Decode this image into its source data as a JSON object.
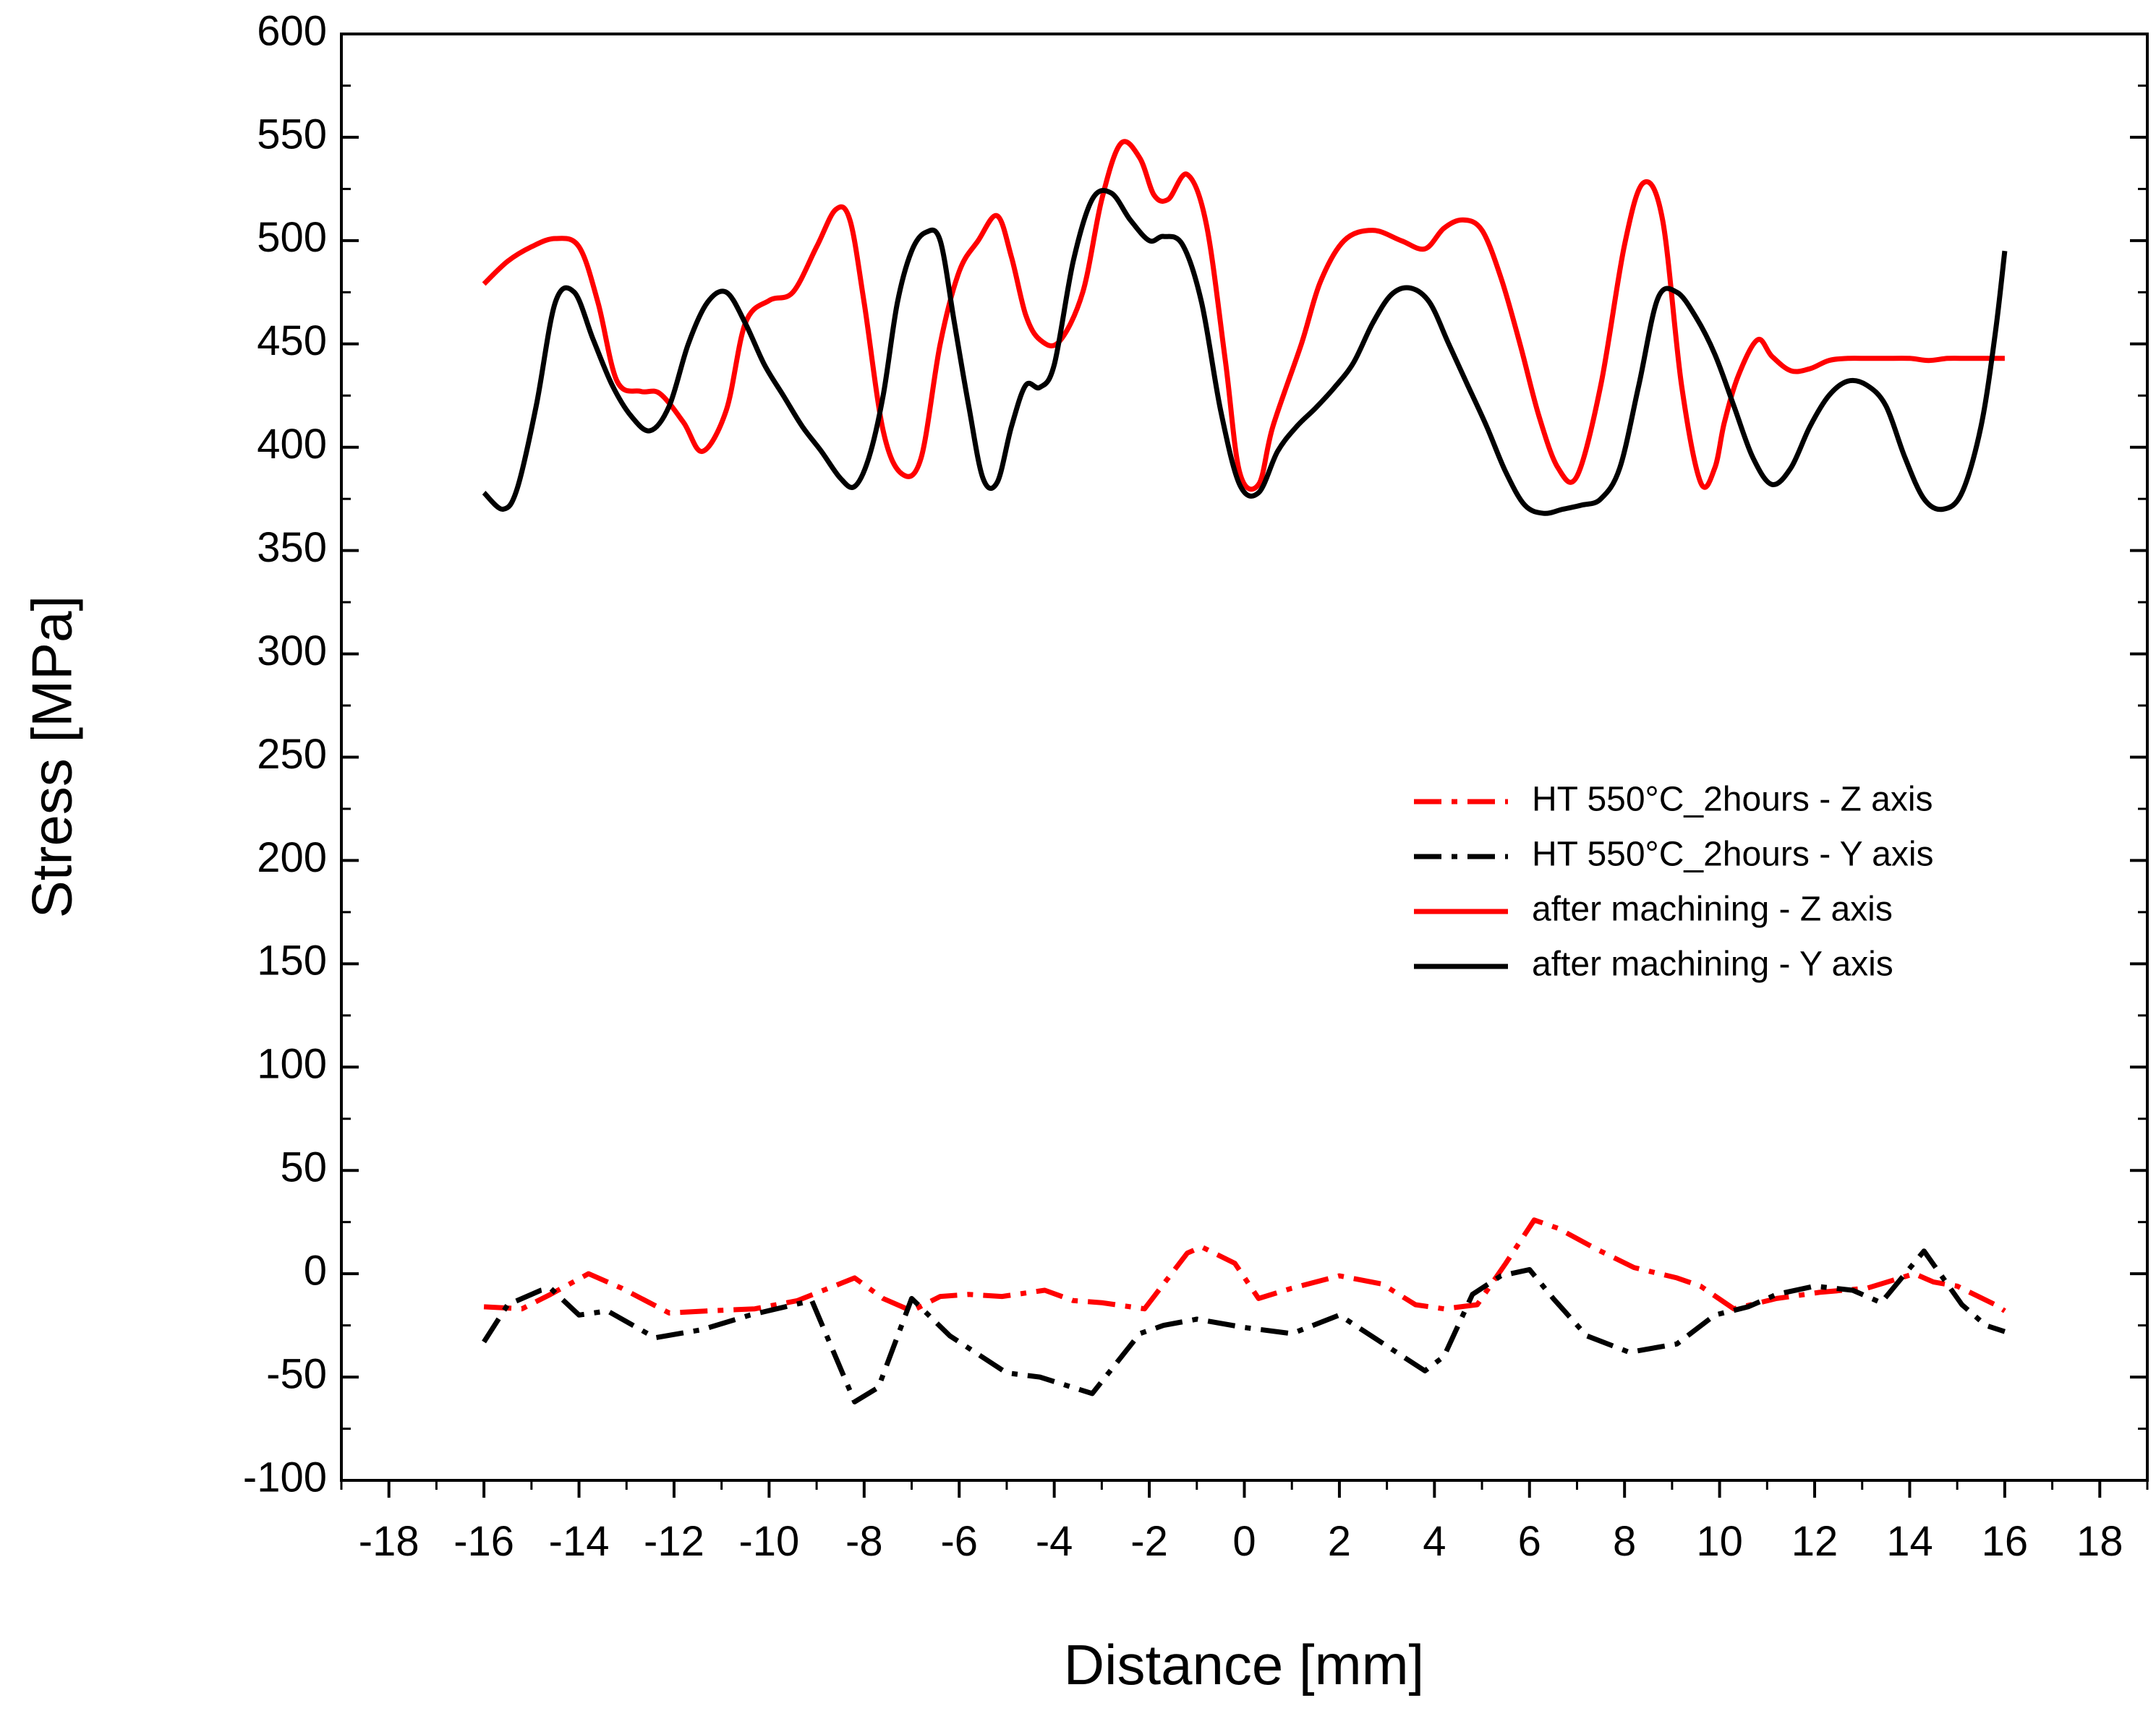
{
  "chart_data": {
    "type": "line",
    "title": "",
    "xlabel": "Distance [mm]",
    "ylabel": "Stress [MPa]",
    "xlim": [
      -19,
      19
    ],
    "ylim": [
      -100,
      600
    ],
    "xticks": [
      -18,
      -16,
      -14,
      -12,
      -10,
      -8,
      -6,
      -4,
      -2,
      0,
      2,
      4,
      6,
      8,
      10,
      12,
      14,
      16,
      18
    ],
    "yticks": [
      -100,
      -50,
      0,
      50,
      100,
      150,
      200,
      250,
      300,
      350,
      400,
      450,
      500,
      550,
      600
    ],
    "grid": false,
    "legend_position": "right-middle",
    "series": [
      {
        "name": "HT 550°C_2hours - Z axis",
        "color": "#ff0000",
        "style": "dashdot",
        "x": [
          -16,
          -15.2,
          -14.6,
          -13.8,
          -13.1,
          -12.1,
          -11.3,
          -10.3,
          -9.4,
          -8.2,
          -7.6,
          -7.0,
          -6.4,
          -5.8,
          -5.1,
          -4.2,
          -3.6,
          -3.0,
          -2.1,
          -1.2,
          -0.9,
          -0.2,
          0.3,
          1.0,
          2.0,
          2.9,
          3.6,
          4.2,
          4.9,
          5.5,
          6.1,
          6.6,
          7.4,
          8.2,
          9.1,
          9.6,
          10.3,
          11.2,
          12.1,
          13.1,
          14.1,
          14.5,
          15.0,
          15.8,
          16.0
        ],
        "values": [
          -16,
          -17,
          -10,
          0,
          -7,
          -19,
          -18,
          -17,
          -13,
          -2,
          -12,
          -18,
          -11,
          -10,
          -11,
          -8,
          -13,
          -14,
          -17,
          10,
          13,
          5,
          -12,
          -7,
          -1,
          -5,
          -15,
          -17,
          -15,
          5,
          26,
          22,
          12,
          3,
          -2,
          -6,
          -17,
          -12,
          -9,
          -7,
          0,
          -4,
          -6,
          -15,
          -18
        ]
      },
      {
        "name": "HT 550°C_2hours - Y axis",
        "color": "#000000",
        "style": "dashdot",
        "x": [
          -16,
          -15.5,
          -14.8,
          -14.6,
          -14.0,
          -13.4,
          -12.4,
          -11.4,
          -10.4,
          -9.1,
          -8.2,
          -7.7,
          -7.0,
          -6.2,
          -5.0,
          -4.3,
          -3.2,
          -2.2,
          -1.7,
          -1.0,
          0.0,
          1.0,
          2.0,
          3.2,
          3.8,
          4.2,
          4.8,
          5.4,
          6.0,
          6.5,
          7.2,
          8.1,
          9.1,
          9.9,
          10.6,
          11.2,
          12.0,
          12.8,
          13.4,
          14.3,
          15.1,
          15.6,
          16.0
        ],
        "values": [
          -33,
          -15,
          -8,
          -7,
          -20,
          -18,
          -31,
          -27,
          -20,
          -13,
          -62,
          -55,
          -12,
          -30,
          -48,
          -50,
          -58,
          -29,
          -25,
          -22,
          -26,
          -29,
          -20,
          -38,
          -47,
          -40,
          -10,
          -1,
          2,
          -12,
          -30,
          -38,
          -34,
          -20,
          -16,
          -10,
          -6,
          -8,
          -14,
          11,
          -15,
          -25,
          -28
        ]
      },
      {
        "name": "after machining - Z axis",
        "color": "#ff0000",
        "style": "solid",
        "x": [
          -16.0,
          -15.5,
          -15.0,
          -14.5,
          -14.0,
          -13.6,
          -13.2,
          -12.7,
          -12.3,
          -11.8,
          -11.4,
          -10.9,
          -10.5,
          -10.0,
          -9.5,
          -9.0,
          -8.6,
          -8.3,
          -8.0,
          -7.6,
          -7.2,
          -6.8,
          -6.4,
          -6.0,
          -5.6,
          -5.2,
          -4.9,
          -4.6,
          -4.3,
          -3.9,
          -3.4,
          -3.0,
          -2.6,
          -2.2,
          -1.9,
          -1.6,
          -1.2,
          -0.8,
          -0.4,
          -0.1,
          0.3,
          0.6,
          1.2,
          1.6,
          2.1,
          2.7,
          3.3,
          3.8,
          4.2,
          4.6,
          5.0,
          5.4,
          5.8,
          6.2,
          6.6,
          7.0,
          7.5,
          8.0,
          8.4,
          8.8,
          9.2,
          9.6,
          9.9,
          10.1,
          10.4,
          10.8,
          11.1,
          11.5,
          11.9,
          12.3,
          12.7,
          13.1,
          13.5,
          14.0,
          14.4,
          14.8,
          15.2,
          15.6,
          16.0
        ],
        "values": [
          479,
          490,
          497,
          501,
          497,
          470,
          432,
          427,
          426,
          412,
          398,
          418,
          460,
          471,
          475,
          497,
          515,
          510,
          470,
          408,
          387,
          395,
          450,
          485,
          500,
          512,
          492,
          464,
          452,
          451,
          475,
          520,
          547,
          540,
          522,
          520,
          532,
          508,
          442,
          388,
          382,
          410,
          450,
          480,
          500,
          505,
          500,
          496,
          506,
          510,
          505,
          482,
          450,
          415,
          390,
          386,
          430,
          498,
          528,
          510,
          430,
          383,
          390,
          412,
          435,
          452,
          444,
          437,
          438,
          442,
          443,
          443,
          443,
          443,
          442,
          443,
          443,
          443,
          443
        ]
      },
      {
        "name": "after machining - Y axis",
        "color": "#000000",
        "style": "solid",
        "x": [
          -16.0,
          -15.6,
          -15.3,
          -14.9,
          -14.5,
          -14.1,
          -13.7,
          -13.3,
          -12.9,
          -12.5,
          -12.1,
          -11.7,
          -11.3,
          -10.9,
          -10.5,
          -10.1,
          -9.7,
          -9.3,
          -8.9,
          -8.5,
          -8.2,
          -7.9,
          -7.6,
          -7.3,
          -7.0,
          -6.7,
          -6.4,
          -6.1,
          -5.8,
          -5.5,
          -5.2,
          -4.9,
          -4.6,
          -4.3,
          -4.0,
          -3.6,
          -3.2,
          -2.8,
          -2.4,
          -2.0,
          -1.7,
          -1.3,
          -0.9,
          -0.5,
          -0.1,
          0.3,
          0.7,
          1.1,
          1.5,
          1.9,
          2.3,
          2.7,
          3.1,
          3.5,
          3.9,
          4.3,
          4.7,
          5.1,
          5.5,
          5.9,
          6.3,
          6.7,
          7.1,
          7.5,
          7.9,
          8.3,
          8.7,
          9.1,
          9.5,
          9.9,
          10.3,
          10.7,
          11.1,
          11.5,
          11.9,
          12.3,
          12.7,
          13.1,
          13.5,
          13.9,
          14.3,
          14.7,
          15.1,
          15.5,
          15.8,
          16.0
        ],
        "values": [
          378,
          370,
          380,
          420,
          470,
          475,
          452,
          430,
          415,
          408,
          420,
          450,
          470,
          475,
          460,
          440,
          425,
          410,
          398,
          385,
          381,
          395,
          425,
          470,
          495,
          504,
          500,
          460,
          420,
          385,
          383,
          410,
          430,
          429,
          440,
          490,
          520,
          523,
          510,
          500,
          502,
          498,
          470,
          418,
          382,
          378,
          398,
          410,
          419,
          429,
          441,
          460,
          474,
          477,
          470,
          450,
          430,
          410,
          388,
          372,
          368,
          370,
          372,
          375,
          390,
          430,
          472,
          475,
          463,
          445,
          420,
          395,
          382,
          390,
          410,
          425,
          432,
          430,
          420,
          395,
          375,
          370,
          378,
          410,
          455,
          495
        ]
      }
    ]
  }
}
